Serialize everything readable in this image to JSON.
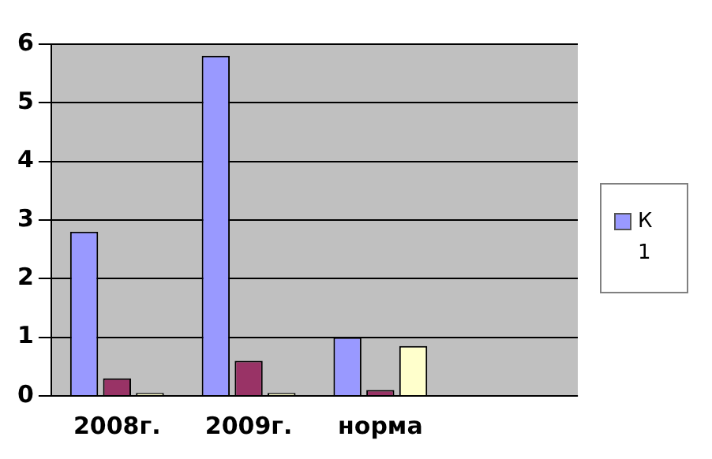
{
  "chart_data": {
    "type": "bar",
    "categories": [
      "2008г.",
      "2009г.",
      "норма",
      null
    ],
    "series": [
      {
        "name": "К 1",
        "color": "#9999ff",
        "values": [
          2.8,
          5.8,
          1.0,
          null
        ]
      },
      {
        "color": "#993366",
        "values": [
          0.3,
          0.6,
          0.1,
          null
        ]
      },
      {
        "color": "#ffffcc",
        "values": [
          0.05,
          0.05,
          0.85,
          null
        ]
      }
    ],
    "ylim": [
      0,
      6
    ],
    "yticks": [
      0,
      1,
      2,
      3,
      4,
      5,
      6
    ],
    "grid": "y",
    "legend": "right"
  }
}
